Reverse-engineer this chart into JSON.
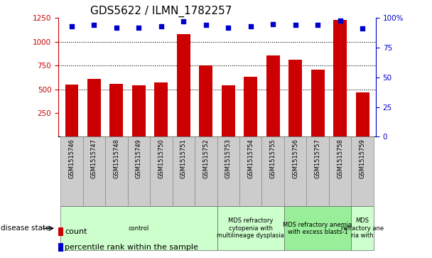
{
  "title": "GDS5622 / ILMN_1782257",
  "samples": [
    "GSM1515746",
    "GSM1515747",
    "GSM1515748",
    "GSM1515749",
    "GSM1515750",
    "GSM1515751",
    "GSM1515752",
    "GSM1515753",
    "GSM1515754",
    "GSM1515755",
    "GSM1515756",
    "GSM1515757",
    "GSM1515758",
    "GSM1515759"
  ],
  "counts": [
    550,
    610,
    560,
    540,
    570,
    1080,
    750,
    545,
    630,
    860,
    810,
    710,
    1230,
    465
  ],
  "percentiles": [
    93,
    94,
    92,
    92,
    93,
    97,
    94,
    92,
    93,
    95,
    94,
    94,
    98,
    91
  ],
  "ylim_left": [
    0,
    1250
  ],
  "ylim_right": [
    0,
    100
  ],
  "yticks_left": [
    250,
    500,
    750,
    1000,
    1250
  ],
  "yticks_right": [
    0,
    25,
    50,
    75,
    100
  ],
  "bar_color": "#cc0000",
  "dot_color": "#0000cc",
  "sample_box_color": "#cccccc",
  "control_color": "#ccffcc",
  "mds1_color": "#ccffcc",
  "mds2_color": "#99ee99",
  "mds3_color": "#ccffcc",
  "group_spans": [
    [
      0,
      6,
      "control"
    ],
    [
      7,
      9,
      "MDS refractory\ncytopenia with\nmultilineage dysplasia"
    ],
    [
      10,
      12,
      "MDS refractory anemia\nwith excess blasts-1"
    ],
    [
      13,
      13,
      "MDS\nrefractory ane\nria with"
    ]
  ],
  "group_colors": [
    "#ccffcc",
    "#ccffcc",
    "#99ee99",
    "#ccffcc"
  ],
  "legend_count": "count",
  "legend_percentile": "percentile rank within the sample",
  "title_fontsize": 11,
  "tick_fontsize": 7.5,
  "sample_fontsize": 6,
  "disease_fontsize": 6,
  "legend_fontsize": 8
}
